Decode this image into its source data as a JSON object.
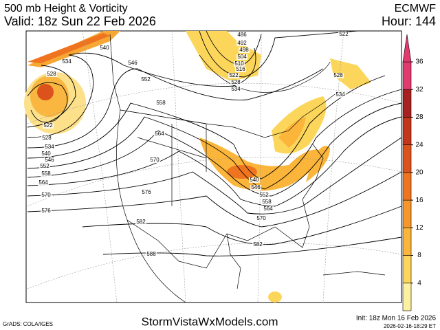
{
  "header": {
    "title": "500 mb Height & Vorticity",
    "valid": "Valid: 18z Sun 22 Feb 2026",
    "model": "ECMWF",
    "hour": "Hour: 144"
  },
  "colorbar": {
    "ticks": [
      4,
      8,
      12,
      16,
      20,
      24,
      28,
      32,
      36
    ],
    "colors": [
      "#fdf0a0",
      "#fcd65a",
      "#fbb53a",
      "#f7962a",
      "#ef7420",
      "#dc521c",
      "#c4361c",
      "#a82020",
      "#e23a6e"
    ]
  },
  "contour_labels": [
    540,
    534,
    546,
    528,
    552,
    558,
    564,
    570,
    576,
    582,
    588,
    522,
    528,
    534,
    540,
    546,
    552,
    558,
    564,
    570,
    576,
    522,
    486,
    492,
    498,
    504,
    510,
    516,
    522,
    528,
    534,
    528,
    534,
    540,
    546,
    552,
    558,
    564,
    570,
    582
  ],
  "footer": {
    "credit": "GrADS: COLA/IGES",
    "site": "StormVistaWxModels.com",
    "init": "Init: 18z Mon 16 Feb 2026",
    "timestamp": "2026-02-16-18:29 ET"
  }
}
